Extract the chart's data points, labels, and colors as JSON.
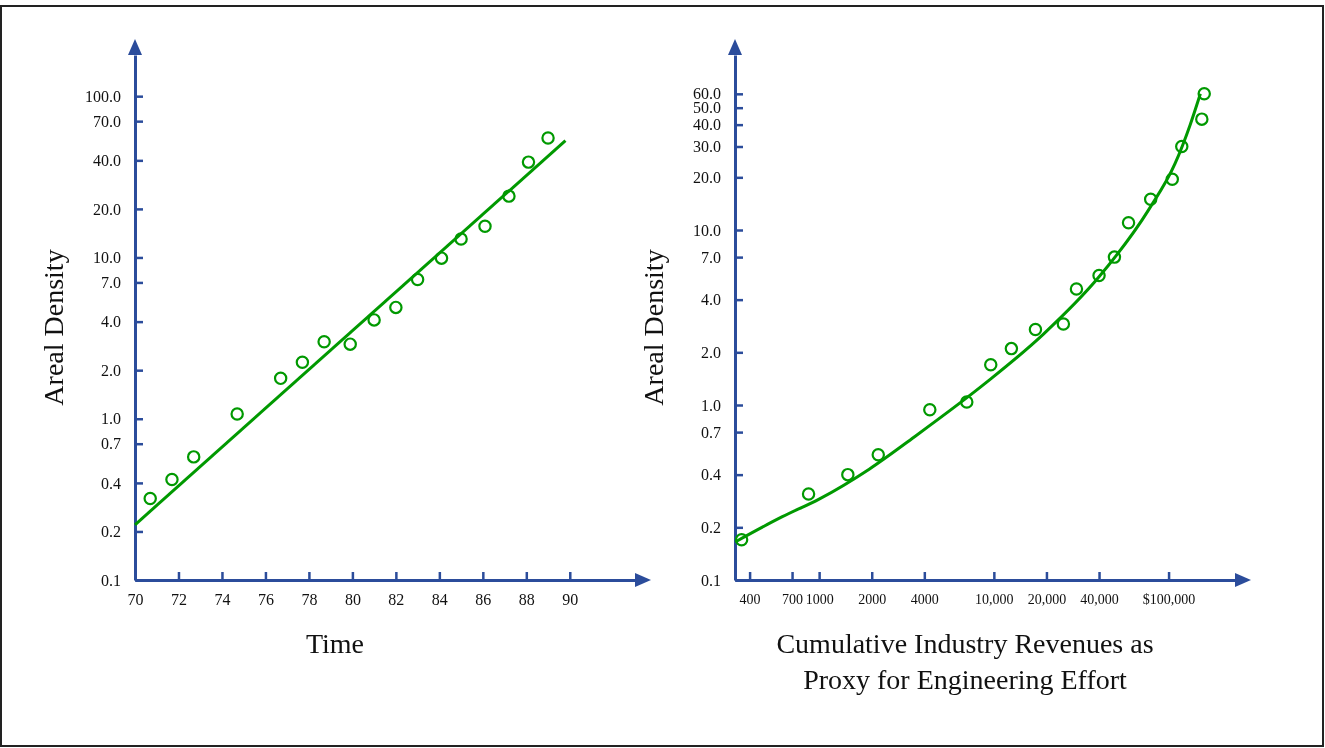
{
  "chart_data": [
    {
      "type": "scatter",
      "xlabel": "Time",
      "ylabel": "Areal Density",
      "log": "y",
      "grid": false,
      "xlim": [
        70,
        93
      ],
      "xticks": [
        70,
        72,
        74,
        76,
        78,
        80,
        82,
        84,
        86,
        88,
        90
      ],
      "ylim": [
        0.1,
        180
      ],
      "yticks": [
        {
          "value": 0.1,
          "label": "0.1"
        },
        {
          "value": 0.2,
          "label": "0.2"
        },
        {
          "value": 0.4,
          "label": "0.4"
        },
        {
          "value": 0.7,
          "label": "0.7"
        },
        {
          "value": 1,
          "label": "1.0"
        },
        {
          "value": 2,
          "label": "2.0"
        },
        {
          "value": 4,
          "label": "4.0"
        },
        {
          "value": 7,
          "label": "7.0"
        },
        {
          "value": 10,
          "label": "10.0"
        },
        {
          "value": 20,
          "label": "20.0"
        },
        {
          "value": 40,
          "label": "40.0"
        },
        {
          "value": 70,
          "label": "70.0"
        },
        {
          "value": 100,
          "label": "100.0"
        }
      ],
      "series": [
        {
          "marker": "circle",
          "color": "#009900",
          "x": [
            70.7,
            71.7,
            72.7,
            74.7,
            76.7,
            77.7,
            78.7,
            79.9,
            81,
            82,
            83,
            84.1,
            85,
            86.1,
            87.2,
            88.1,
            89
          ],
          "values": [
            0.32,
            0.42,
            0.58,
            1.07,
            1.78,
            2.24,
            3,
            2.9,
            4.1,
            4.9,
            7.3,
            9.9,
            13,
            15.6,
            24,
            39,
            55
          ]
        },
        {
          "type": "line",
          "marker": "none",
          "color": "#009900",
          "x": [
            70,
            89.8
          ],
          "values": [
            0.22,
            53
          ]
        }
      ]
    },
    {
      "type": "scatter",
      "xlabel": "Cumulative Industry Revenues as\nProxy for Engineering Effort",
      "ylabel": "Areal Density",
      "log": "xy",
      "grid": false,
      "xlim": [
        330,
        240000
      ],
      "xticks": [
        {
          "value": 400,
          "label": "400"
        },
        {
          "value": 700,
          "label": "700"
        },
        {
          "value": 1000,
          "label": "1000"
        },
        {
          "value": 2000,
          "label": "2000"
        },
        {
          "value": 4000,
          "label": "4000"
        },
        {
          "value": 10000,
          "label": "10,000"
        },
        {
          "value": 20000,
          "label": "20,000"
        },
        {
          "value": 40000,
          "label": "40,000"
        },
        {
          "value": 100000,
          "label": "$100,000"
        }
      ],
      "ylim": [
        0.1,
        100
      ],
      "yticks": [
        {
          "value": 0.1,
          "label": "0.1"
        },
        {
          "value": 0.2,
          "label": "0.2"
        },
        {
          "value": 0.4,
          "label": "0.4"
        },
        {
          "value": 0.7,
          "label": "0.7"
        },
        {
          "value": 1,
          "label": "1.0"
        },
        {
          "value": 2,
          "label": "2.0"
        },
        {
          "value": 4,
          "label": "4.0"
        },
        {
          "value": 7,
          "label": "7.0"
        },
        {
          "value": 10,
          "label": "10.0"
        },
        {
          "value": 20,
          "label": "20.0"
        },
        {
          "value": 30,
          "label": "30.0"
        },
        {
          "value": 40,
          "label": "40.0"
        },
        {
          "value": 50,
          "label": "50.0"
        },
        {
          "value": 60,
          "label": "60.0"
        }
      ],
      "series": [
        {
          "marker": "circle",
          "color": "#009900",
          "x": [
            360,
            870,
            1460,
            2180,
            4300,
            7000,
            9600,
            12600,
            17300,
            25000,
            29700,
            40000,
            49000,
            59000,
            79000,
            105000,
            119000,
            155000,
            160000
          ],
          "values": [
            0.17,
            0.31,
            0.4,
            0.52,
            0.94,
            1.04,
            1.7,
            2.1,
            2.7,
            2.9,
            4.6,
            5.5,
            7,
            11,
            15,
            19.5,
            30,
            43,
            60
          ]
        },
        {
          "type": "line",
          "marker": "none",
          "color": "#009900",
          "x": [
            331,
            616,
            1000,
            1935,
            3600,
            9100,
            19300,
            40000,
            77500,
            109000,
            133000,
            152000
          ],
          "values": [
            0.165,
            0.23,
            0.29,
            0.43,
            0.67,
            1.35,
            2.55,
            5.4,
            13.2,
            24,
            40,
            60
          ]
        }
      ]
    }
  ]
}
